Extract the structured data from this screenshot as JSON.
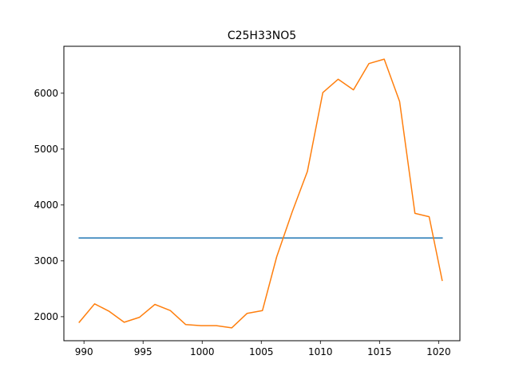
{
  "chart_data": {
    "type": "line",
    "title": "C25H33NO5",
    "xlabel": "",
    "ylabel": "",
    "xlim": [
      988.3,
      1021.8
    ],
    "ylim": [
      1570,
      6840
    ],
    "x_ticks": [
      990,
      995,
      1000,
      1005,
      1010,
      1015,
      1020
    ],
    "y_ticks": [
      2000,
      3000,
      4000,
      5000,
      6000
    ],
    "grid": false,
    "legend": "none",
    "series": [
      {
        "color": "#1f77b4",
        "x": [
          989.6,
          1020.3
        ],
        "y": [
          3410,
          3410
        ]
      },
      {
        "color": "#ff7f0e",
        "x": [
          989.6,
          990.9,
          992.1,
          993.4,
          994.7,
          996.0,
          997.3,
          998.6,
          999.9,
          1001.2,
          1002.5,
          1003.8,
          1005.1,
          1006.3,
          1007.6,
          1008.9,
          1010.2,
          1011.5,
          1012.8,
          1014.1,
          1015.4,
          1016.7,
          1018.0,
          1019.2,
          1020.3
        ],
        "y": [
          1900,
          2230,
          2100,
          1900,
          1990,
          2220,
          2110,
          1860,
          1840,
          1840,
          1800,
          2060,
          2110,
          3070,
          3870,
          4600,
          6010,
          6250,
          6060,
          6530,
          6610,
          5850,
          3850,
          3790,
          2650
        ]
      }
    ]
  }
}
